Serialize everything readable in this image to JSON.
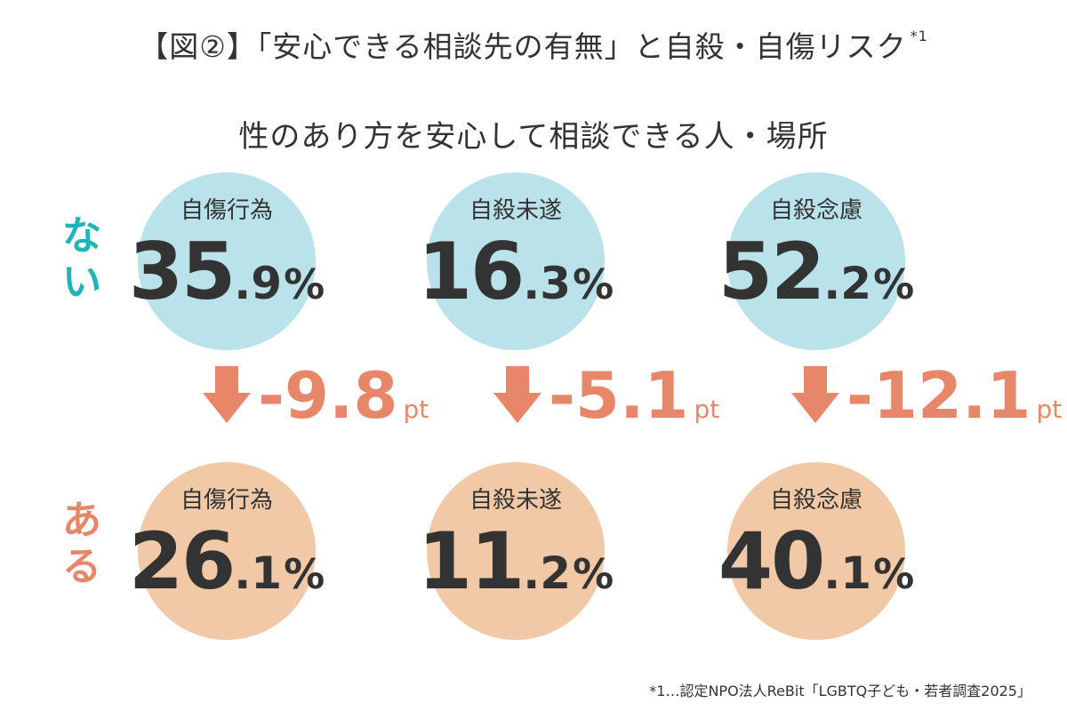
{
  "title": "【図②】「安心できる相談先の有無」と自殺・自傷リスク",
  "title_note_mark": "*1",
  "subtitle": "性のあり方を安心して相談できる人・場所",
  "colors": {
    "nai": "#1fb5b8",
    "aru": "#e8866a",
    "circle_nai": "#b9e2ea",
    "circle_aru": "#f2c9a6",
    "arrow": "#e8866a"
  },
  "rows": [
    {
      "label": "ない",
      "label_chars": [
        "な",
        "い"
      ]
    },
    {
      "label": "ある",
      "label_chars": [
        "あ",
        "る"
      ]
    }
  ],
  "chart_data": {
    "type": "table",
    "categories": [
      "自傷行為",
      "自殺未遂",
      "自殺念慮"
    ],
    "series": [
      {
        "name": "ない",
        "values": [
          35.9,
          16.3,
          52.2
        ],
        "int": [
          "35",
          "16",
          "52"
        ],
        "dec": [
          ".9",
          ".3",
          ".2"
        ]
      },
      {
        "name": "ある",
        "values": [
          26.1,
          11.2,
          40.1
        ],
        "int": [
          "26",
          "11",
          "40"
        ],
        "dec": [
          ".1",
          ".2",
          ".1"
        ]
      }
    ],
    "unit": "%",
    "differences": [
      {
        "value": -9.8,
        "label": "-9.8"
      },
      {
        "value": -5.1,
        "label": "-5.1"
      },
      {
        "value": -12.1,
        "label": "-12.1"
      }
    ],
    "difference_unit": "pt"
  },
  "footnote": "*1…認定NPO法人ReBit「LGBTQ子ども・若者調査2025」"
}
